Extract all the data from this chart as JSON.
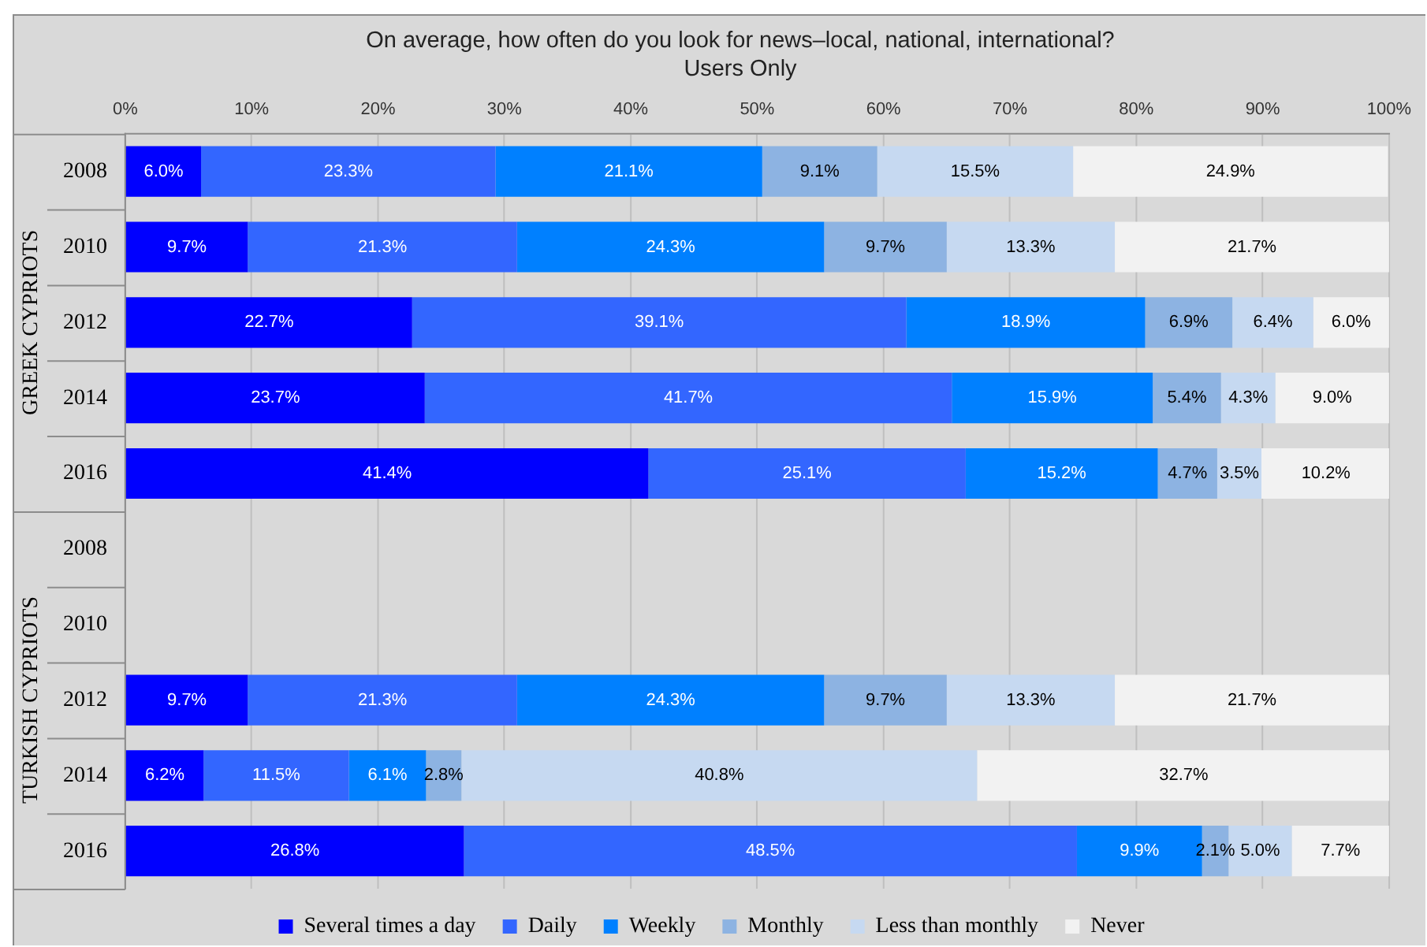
{
  "chart_data": {
    "type": "bar",
    "orientation": "horizontal",
    "stacked": true,
    "title": "On average, how often do you look for news–local, national, international?",
    "subtitle": "Users Only",
    "annotations": [
      "GREEK CYPRIOTS",
      "TURKISH CYPRIOTS"
    ],
    "categories": [
      "2008",
      "2010",
      "2012",
      "2014",
      "2016",
      "2008",
      "2010",
      "2012",
      "2014",
      "2016"
    ],
    "series": [
      {
        "name": "Several times a day",
        "color": "#0000ff",
        "values": [
          6.0,
          9.7,
          22.7,
          23.7,
          41.4,
          null,
          null,
          9.7,
          6.2,
          26.8
        ],
        "value_labels": [
          "6.0%",
          "9.7%",
          "22.7%",
          "23.7%",
          "41.4%",
          null,
          null,
          "9.7%",
          "6.2%",
          "26.8%"
        ]
      },
      {
        "name": "Daily",
        "color": "#3366ff",
        "values": [
          23.3,
          21.3,
          39.1,
          41.7,
          25.1,
          null,
          null,
          21.3,
          11.5,
          48.5
        ],
        "value_labels": [
          "23.3%",
          "21.3%",
          "39.1%",
          "41.7%",
          "25.1%",
          null,
          null,
          "21.3%",
          "11.5%",
          "48.5%"
        ]
      },
      {
        "name": "Weekly",
        "color": "#0080ff",
        "values": [
          21.1,
          24.3,
          18.9,
          15.9,
          15.2,
          null,
          null,
          24.3,
          6.1,
          9.9
        ],
        "value_labels": [
          "21.1%",
          "24.3%",
          "18.9%",
          "15.9%",
          "15.2%",
          null,
          null,
          "24.3%",
          "6.1%",
          "9.9%"
        ]
      },
      {
        "name": "Monthly",
        "color": "#8db3e2",
        "values": [
          9.1,
          9.7,
          6.9,
          5.4,
          4.7,
          null,
          null,
          9.7,
          2.8,
          2.1
        ],
        "value_labels": [
          "9.1%",
          "9.7%",
          "6.9%",
          "5.4%",
          "4.7%",
          null,
          null,
          "9.7%",
          "2.8%",
          "2.1%"
        ]
      },
      {
        "name": "Less than monthly",
        "color": "#c6d9f1",
        "values": [
          15.5,
          13.3,
          6.4,
          4.3,
          3.5,
          null,
          null,
          13.3,
          40.8,
          5.0
        ],
        "value_labels": [
          "15.5%",
          "13.3%",
          "6.4%",
          "4.3%",
          "3.5%",
          null,
          null,
          "13.3%",
          "40.8%",
          "5.0%"
        ]
      },
      {
        "name": "Never",
        "color": "#f2f2f2",
        "values": [
          24.9,
          21.7,
          6.0,
          9.0,
          10.2,
          null,
          null,
          21.7,
          32.7,
          7.7
        ],
        "value_labels": [
          "24.9%",
          "21.7%",
          "6.0%",
          "9.0%",
          "10.2%",
          null,
          null,
          "21.7%",
          "32.7%",
          "7.7%"
        ]
      }
    ],
    "xlim": [
      0,
      100
    ],
    "xticks": [
      {
        "value": 0,
        "label": "0%"
      },
      {
        "value": 10,
        "label": "10%"
      },
      {
        "value": 20,
        "label": "20%"
      },
      {
        "value": 30,
        "label": "30%"
      },
      {
        "value": 40,
        "label": "40%"
      },
      {
        "value": 50,
        "label": "50%"
      },
      {
        "value": 60,
        "label": "60%"
      },
      {
        "value": 70,
        "label": "70%"
      },
      {
        "value": 80,
        "label": "80%"
      },
      {
        "value": 90,
        "label": "90%"
      },
      {
        "value": 100,
        "label": "100%"
      }
    ],
    "grid": "x",
    "legend": "bottom"
  }
}
